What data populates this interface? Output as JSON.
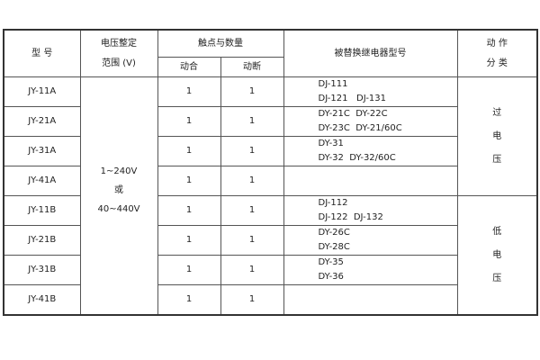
{
  "header": {
    "model": "型  号",
    "voltage_range_line1": "电压整定",
    "voltage_range_line2": "范围 (V)",
    "contacts": "触点与数量",
    "make": "动合",
    "break": "动断",
    "replaced": "被替换继电器型号",
    "action_line1": "动 作",
    "action_line2": "分 类"
  },
  "voltage_range": {
    "line1": "1~240V",
    "line2": "或",
    "line3": "40~440V"
  },
  "action_over": [
    "过",
    "电",
    "压"
  ],
  "action_under": [
    "低",
    "电",
    "压"
  ],
  "rows": [
    {
      "model": "JY-11A",
      "make": "1",
      "break": "1",
      "replaced": [
        "DJ-111",
        "DJ-121   DJ-131"
      ]
    },
    {
      "model": "JY-21A",
      "make": "1",
      "break": "1",
      "replaced": [
        "DY-21C  DY-22C",
        "DY-23C  DY-21/60C"
      ]
    },
    {
      "model": "JY-31A",
      "make": "1",
      "break": "1",
      "replaced": [
        "DY-31",
        "DY-32  DY-32/60C"
      ]
    },
    {
      "model": "JY-41A",
      "make": "1",
      "break": "1",
      "replaced": []
    },
    {
      "model": "JY-11B",
      "make": "1",
      "break": "1",
      "replaced": [
        "DJ-112",
        "DJ-122  DJ-132"
      ]
    },
    {
      "model": "JY-21B",
      "make": "1",
      "break": "1",
      "replaced": [
        "DY-26C",
        "DY-28C"
      ]
    },
    {
      "model": "JY-31B",
      "make": "1",
      "break": "1",
      "replaced": [
        "DY-35",
        "DY-36"
      ]
    },
    {
      "model": "JY-41B",
      "make": "1",
      "break": "1",
      "replaced": []
    }
  ]
}
